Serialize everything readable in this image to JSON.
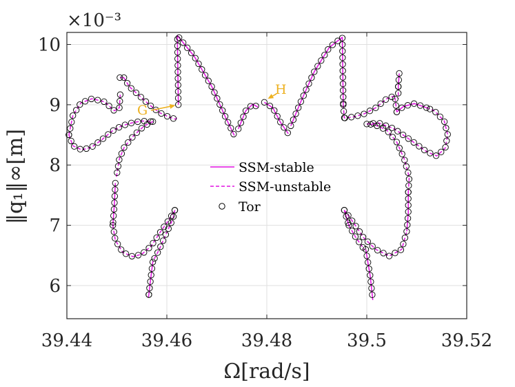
{
  "chart_data": {
    "type": "line",
    "xlabel": "Ω[rad/s]",
    "ylabel": "‖q₁‖∞[m]",
    "y_exponent_label": "×10⁻³",
    "xlim": [
      39.44,
      39.52
    ],
    "ylim": [
      5.45,
      10.2
    ],
    "x_ticks": [
      39.44,
      39.46,
      39.48,
      39.5,
      39.52
    ],
    "x_tick_labels": [
      "39.44",
      "39.46",
      "39.48",
      "39.5",
      "39.52"
    ],
    "y_ticks": [
      6,
      7,
      8,
      9,
      10
    ],
    "y_tick_labels": [
      "6",
      "7",
      "8",
      "9",
      "10"
    ],
    "grid": true,
    "legend_position": "center",
    "series_colors": {
      "stable": "#E011E0",
      "unstable": "#E011E0",
      "tor": "#000000"
    },
    "annotation_color": "#EDB120",
    "series": [
      {
        "name": "SSM-stable",
        "style": "solid",
        "segments": [
          [
            [
              39.4623,
              9.0
            ],
            [
              39.4621,
              10.15
            ],
            [
              39.4655,
              9.8
            ],
            [
              39.469,
              9.3
            ],
            [
              39.4717,
              8.8
            ],
            [
              39.4735,
              8.49
            ]
          ],
          [
            [
              39.4743,
              8.6
            ],
            [
              39.4758,
              8.9
            ],
            [
              39.4772,
              9.01
            ],
            [
              39.4782,
              8.96
            ]
          ],
          [
            [
              39.4795,
              9.04
            ],
            [
              39.4812,
              8.95
            ],
            [
              39.4828,
              8.7
            ],
            [
              39.4843,
              8.52
            ]
          ],
          [
            [
              39.4848,
              8.65
            ],
            [
              39.4868,
              9.05
            ],
            [
              39.4895,
              9.55
            ],
            [
              39.4925,
              9.95
            ],
            [
              39.4951,
              10.12
            ],
            [
              39.4953,
              9.0
            ]
          ],
          [
            [
              39.4506,
              9.45
            ],
            [
              39.4514,
              9.45
            ]
          ],
          [
            [
              39.4497,
              7.7
            ],
            [
              39.4495,
              7.35
            ],
            [
              39.4492,
              7.0
            ]
          ],
          [
            [
              39.4564,
              5.85
            ],
            [
              39.4566,
              6.0
            ],
            [
              39.4572,
              6.4
            ]
          ],
          [
            [
              39.4955,
              7.25
            ],
            [
              39.4964,
              7.0
            ]
          ],
          [
            [
              39.4998,
              6.6
            ],
            [
              39.5007,
              6.15
            ],
            [
              39.5012,
              5.76
            ]
          ],
          [
            [
              39.5065,
              9.52
            ],
            [
              39.5063,
              9.3
            ]
          ],
          [
            [
              39.506,
              8.88
            ],
            [
              39.5073,
              8.97
            ],
            [
              39.5095,
              9.02
            ],
            [
              39.512,
              8.95
            ]
          ],
          [
            [
              39.5083,
              7.55
            ],
            [
              39.5083,
              7.2
            ],
            [
              39.508,
              6.9
            ]
          ]
        ]
      },
      {
        "name": "SSM-unstable",
        "style": "dashed",
        "segments": [
          [
            [
              39.4404,
              8.5
            ],
            [
              39.4412,
              8.82
            ],
            [
              39.4428,
              9.03
            ],
            [
              39.445,
              9.1
            ],
            [
              39.4475,
              9.05
            ],
            [
              39.4495,
              8.9
            ],
            [
              39.4505,
              8.95
            ],
            [
              39.4507,
              9.2
            ]
          ],
          [
            [
              39.4514,
              9.45
            ],
            [
              39.4525,
              9.3
            ],
            [
              39.4545,
              9.15
            ],
            [
              39.4565,
              9.0
            ],
            [
              39.4585,
              8.87
            ],
            [
              39.4603,
              8.8
            ],
            [
              39.4617,
              8.76
            ],
            [
              39.4623,
              8.8
            ]
          ],
          [
            [
              39.4404,
              8.5
            ],
            [
              39.4412,
              8.32
            ],
            [
              39.443,
              8.25
            ],
            [
              39.445,
              8.3
            ],
            [
              39.447,
              8.42
            ],
            [
              39.449,
              8.56
            ],
            [
              39.451,
              8.65
            ],
            [
              39.453,
              8.7
            ],
            [
              39.455,
              8.73
            ],
            [
              39.4572,
              8.72
            ]
          ],
          [
            [
              39.4572,
              8.72
            ],
            [
              39.4555,
              8.65
            ],
            [
              39.4535,
              8.5
            ],
            [
              39.4515,
              8.3
            ],
            [
              39.4505,
              8.1
            ],
            [
              39.4499,
              7.8
            ]
          ],
          [
            [
              39.4492,
              7.0
            ],
            [
              39.4497,
              6.75
            ],
            [
              39.4512,
              6.55
            ],
            [
              39.4532,
              6.48
            ],
            [
              39.455,
              6.52
            ],
            [
              39.4568,
              6.65
            ],
            [
              39.4588,
              6.9
            ],
            [
              39.4605,
              7.1
            ],
            [
              39.4616,
              7.25
            ]
          ],
          [
            [
              39.4616,
              7.25
            ],
            [
              39.4612,
              7.1
            ],
            [
              39.4598,
              6.85
            ],
            [
              39.4585,
              6.6
            ],
            [
              39.4572,
              6.4
            ]
          ],
          [
            [
              39.4564,
              5.85
            ],
            [
              39.4563,
              5.8
            ]
          ],
          [
            [
              39.4964,
              7.0
            ],
            [
              39.4978,
              6.8
            ],
            [
              39.4995,
              6.6
            ]
          ],
          [
            [
              39.4955,
              7.25
            ],
            [
              39.4973,
              7.05
            ],
            [
              39.4993,
              6.8
            ],
            [
              39.5018,
              6.6
            ],
            [
              39.5045,
              6.49
            ],
            [
              39.507,
              6.6
            ],
            [
              39.508,
              6.9
            ]
          ],
          [
            [
              39.5083,
              7.55
            ],
            [
              39.5085,
              7.8
            ],
            [
              39.5075,
              8.1
            ],
            [
              39.506,
              8.38
            ],
            [
              39.504,
              8.58
            ],
            [
              39.5015,
              8.67
            ],
            [
              39.5,
              8.68
            ]
          ],
          [
            [
              39.5,
              8.68
            ],
            [
              39.5023,
              8.7
            ],
            [
              39.5055,
              8.6
            ],
            [
              39.509,
              8.4
            ],
            [
              39.512,
              8.22
            ],
            [
              39.514,
              8.15
            ],
            [
              39.5157,
              8.28
            ],
            [
              39.5162,
              8.5
            ],
            [
              39.5155,
              8.73
            ],
            [
              39.5135,
              8.9
            ],
            [
              39.512,
              8.95
            ]
          ],
          [
            [
              39.506,
              8.88
            ],
            [
              39.5056,
              9.15
            ],
            [
              39.504,
              9.1
            ],
            [
              39.5018,
              8.95
            ],
            [
              39.4995,
              8.85
            ],
            [
              39.4975,
              8.8
            ],
            [
              39.4955,
              8.78
            ]
          ],
          [
            [
              39.4953,
              9.0
            ],
            [
              39.4955,
              8.78
            ]
          ],
          [
            [
              39.5063,
              9.3
            ],
            [
              39.5063,
              9.1
            ]
          ]
        ]
      },
      {
        "name": "Tor",
        "style": "markers",
        "marker": "circle"
      }
    ],
    "annotations": [
      {
        "label": "G",
        "arrow_to": [
          39.4617,
          8.99
        ]
      },
      {
        "label": "H",
        "arrow_to": [
          39.4802,
          9.1
        ]
      }
    ]
  },
  "legend": {
    "items": [
      {
        "label": "SSM-stable"
      },
      {
        "label": "SSM-unstable"
      },
      {
        "label": "Tor"
      }
    ]
  }
}
